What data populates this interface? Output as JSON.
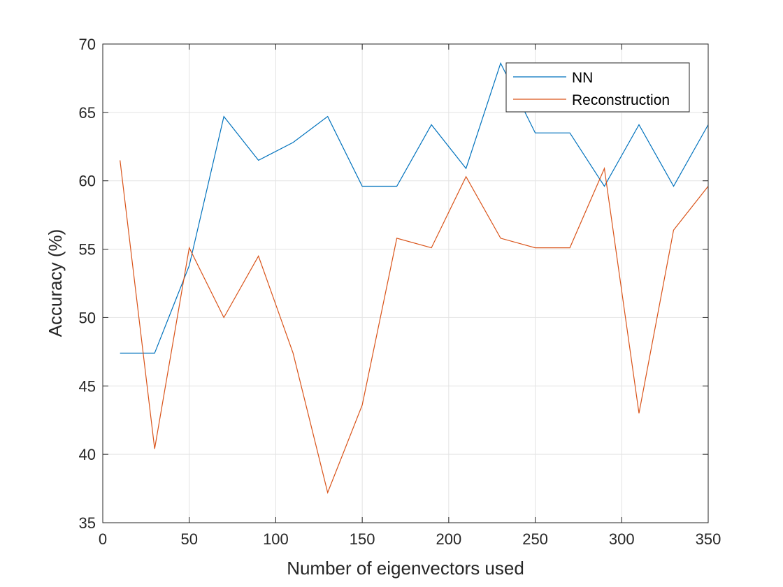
{
  "chart_data": {
    "type": "line",
    "title": "",
    "xlabel": "Number of eigenvectors used",
    "ylabel": "Accuracy (%)",
    "xlim": [
      0,
      350
    ],
    "ylim": [
      35,
      70
    ],
    "xticks": [
      0,
      50,
      100,
      150,
      200,
      250,
      300,
      350
    ],
    "yticks": [
      35,
      40,
      45,
      50,
      55,
      60,
      65,
      70
    ],
    "grid": true,
    "legend_position": "top-right",
    "x": [
      10,
      30,
      50,
      70,
      90,
      110,
      130,
      150,
      170,
      190,
      210,
      230,
      250,
      270,
      290,
      310,
      330,
      350
    ],
    "series": [
      {
        "name": "NN",
        "color": "#0072BD",
        "values": [
          47.4,
          47.4,
          53.8,
          64.7,
          61.5,
          62.8,
          64.7,
          59.6,
          59.6,
          64.1,
          60.9,
          68.6,
          63.5,
          63.5,
          59.6,
          64.1,
          59.6,
          64.1
        ]
      },
      {
        "name": "Reconstruction",
        "color": "#D95319",
        "values": [
          61.5,
          40.4,
          55.1,
          50.0,
          54.5,
          47.4,
          37.2,
          43.6,
          55.8,
          55.1,
          60.3,
          55.8,
          55.1,
          55.1,
          60.9,
          43.0,
          56.4,
          59.6
        ]
      }
    ]
  }
}
